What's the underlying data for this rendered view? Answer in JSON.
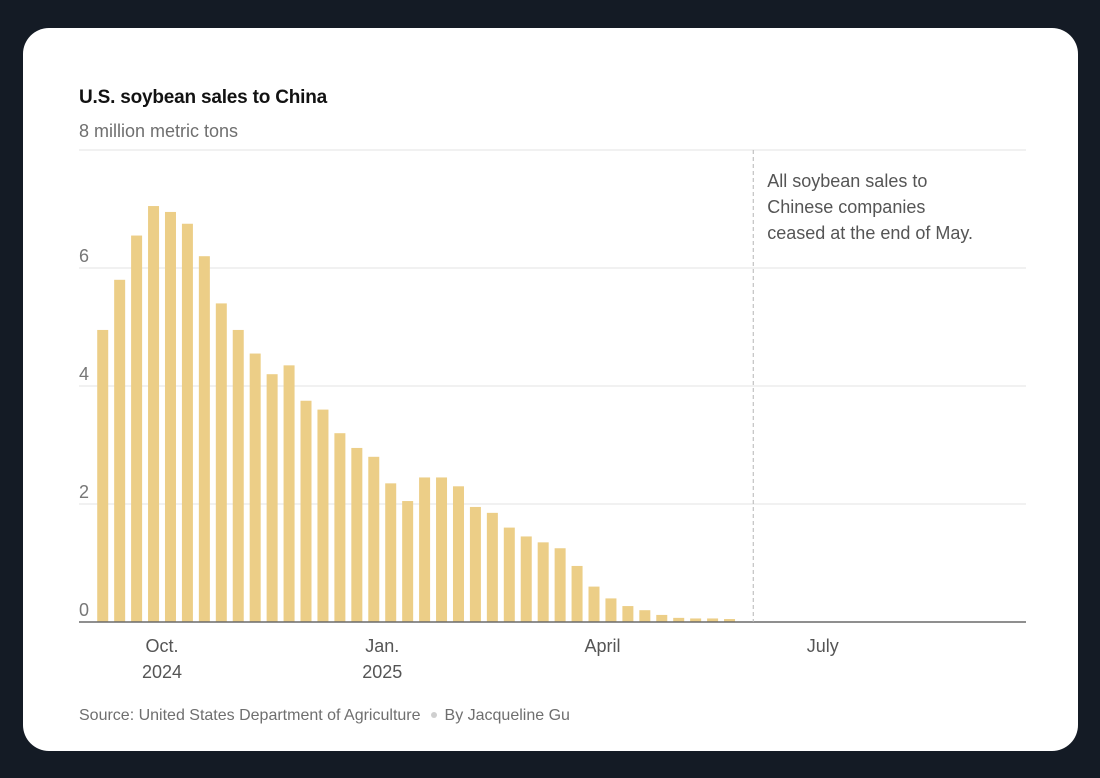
{
  "chart_data": {
    "type": "bar",
    "title": "U.S. soybean sales to China",
    "ylabel": "8 million metric tons",
    "xlabel": "",
    "ylim": [
      0,
      8
    ],
    "yticks": [
      0,
      2,
      4,
      6
    ],
    "grid": true,
    "series": [
      {
        "name": "U.S. soybean sales to China",
        "unit": "million metric tons",
        "values": [
          4.95,
          5.8,
          6.55,
          7.05,
          6.95,
          6.75,
          6.2,
          5.4,
          4.95,
          4.55,
          4.2,
          4.35,
          3.75,
          3.6,
          3.2,
          2.95,
          2.8,
          2.35,
          2.05,
          2.45,
          2.45,
          2.3,
          1.95,
          1.85,
          1.6,
          1.45,
          1.35,
          1.25,
          0.95,
          0.6,
          0.4,
          0.27,
          0.2,
          0.12,
          0.07,
          0.06,
          0.06,
          0.05
        ]
      }
    ],
    "x_axis_labels": [
      {
        "line1": "Oct.",
        "line2": "2024",
        "at_week": 3.5
      },
      {
        "line1": "Jan.",
        "line2": "2025",
        "at_week": 16.5
      },
      {
        "line1": "April",
        "line2": "",
        "at_week": 29.5
      },
      {
        "line1": "July",
        "line2": "",
        "at_week": 42.5
      }
    ],
    "x_range_weeks": [
      -1.4,
      54.5
    ],
    "annotation": {
      "lines": [
        "All soybean sales to",
        "Chinese companies",
        "ceased at the end of May."
      ],
      "at_week": 38.4
    }
  },
  "footer": {
    "source": "Source: United States Department of Agriculture",
    "byline": "By Jacqueline Gu"
  },
  "colors": {
    "bar": "#ecce87",
    "grid": "#e3e3e3",
    "axis": "#6a6a6a",
    "annotation_line": "#b5b5b5"
  }
}
